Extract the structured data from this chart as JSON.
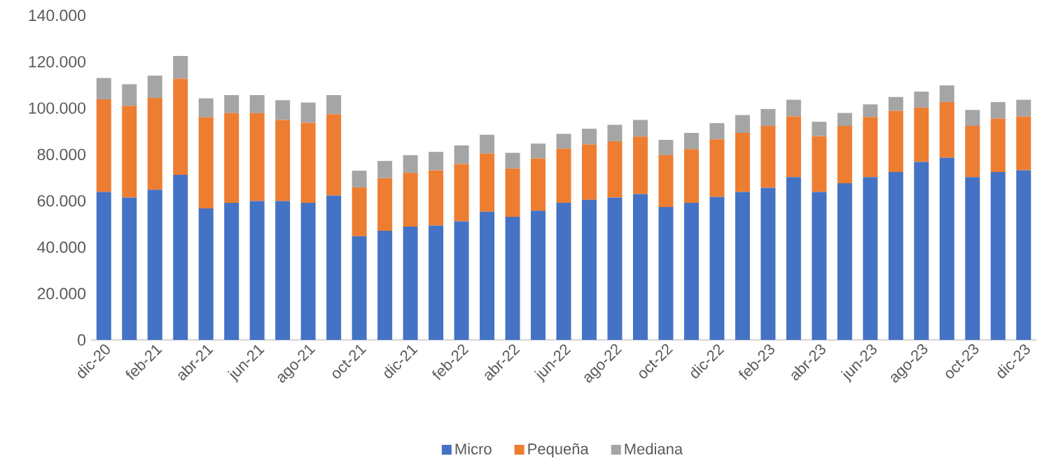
{
  "chart_data": {
    "type": "bar",
    "stacked": true,
    "categories": [
      "dic-20",
      null,
      "feb-21",
      null,
      "abr-21",
      null,
      "jun-21",
      null,
      "ago-21",
      null,
      "oct-21",
      null,
      "dic-21",
      null,
      "feb-22",
      null,
      "abr-22",
      null,
      "jun-22",
      null,
      "ago-22",
      null,
      "oct-22",
      null,
      "dic-22",
      null,
      "feb-23",
      null,
      "abr-23",
      null,
      "jun-23",
      null,
      "ago-23",
      null,
      "oct-23",
      null,
      "dic-23"
    ],
    "series": [
      {
        "name": "Micro",
        "color": "#4472c4",
        "values": [
          63800,
          61400,
          64800,
          71200,
          56700,
          59100,
          59900,
          59900,
          59100,
          62300,
          44700,
          47100,
          48900,
          49300,
          51100,
          55300,
          53100,
          55700,
          59100,
          60400,
          61400,
          62900,
          57300,
          59100,
          61700,
          63800,
          65600,
          70200,
          63800,
          67600,
          70200,
          72400,
          76800,
          78600,
          70200,
          72400,
          73200
        ]
      },
      {
        "name": "Pequeña",
        "color": "#ed7d31",
        "values": [
          40000,
          39600,
          39600,
          41500,
          39300,
          38700,
          37900,
          35000,
          34600,
          35100,
          21100,
          22700,
          23100,
          23900,
          24800,
          25100,
          20900,
          22600,
          23400,
          23900,
          24300,
          24800,
          22400,
          23200,
          24800,
          25500,
          26700,
          26200,
          24100,
          24700,
          26000,
          26400,
          23400,
          24000,
          22100,
          23100,
          23200
        ]
      },
      {
        "name": "Mediana",
        "color": "#a5a5a5",
        "values": [
          9200,
          9300,
          9600,
          9800,
          8200,
          7800,
          7800,
          8500,
          8700,
          8200,
          7200,
          7400,
          7700,
          7900,
          8000,
          8100,
          6700,
          6400,
          6400,
          6800,
          7100,
          7200,
          6600,
          7000,
          7000,
          7700,
          7300,
          7200,
          6200,
          5600,
          5400,
          6000,
          6900,
          7200,
          6900,
          7100,
          7200
        ]
      }
    ],
    "ylim": [
      0,
      140000
    ],
    "yticks": [
      0,
      {
        "value": 20000,
        "label": "20.000"
      },
      {
        "value": 40000,
        "label": "40.000"
      },
      {
        "value": 60000,
        "label": "60.000"
      },
      {
        "value": 80000,
        "label": "80.000"
      },
      {
        "value": 100000,
        "label": "100.000"
      },
      {
        "value": 120000,
        "label": "120.000"
      },
      {
        "value": 140000,
        "label": "140.000"
      }
    ],
    "grid": false,
    "legend": "bottom"
  }
}
